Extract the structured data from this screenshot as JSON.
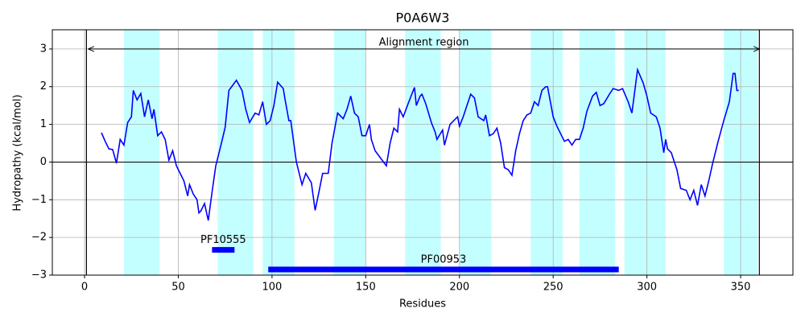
{
  "chart_data": {
    "type": "line",
    "title": "P0A6W3",
    "x_label": "Residues",
    "y_label": "Hydropathy (kcal/mol)",
    "xlim": [
      -17.2,
      377.9
    ],
    "ylim": [
      -3,
      3.51
    ],
    "xticks": [
      0,
      50,
      100,
      150,
      200,
      250,
      300,
      350
    ],
    "yticks": [
      {
        "value": -3,
        "label": "−3"
      },
      {
        "value": -2,
        "label": "−2"
      },
      {
        "value": -1,
        "label": "−1"
      },
      0,
      1,
      2,
      3
    ],
    "grid": true,
    "reference_line": 0,
    "highlight_color": "#c4ffff",
    "highlight_regions": [
      [
        21,
        40
      ],
      [
        71,
        90
      ],
      [
        95,
        112
      ],
      [
        133,
        150
      ],
      [
        171,
        190
      ],
      [
        200,
        217
      ],
      [
        238,
        255
      ],
      [
        264,
        283
      ],
      [
        288,
        310
      ],
      [
        341,
        359
      ]
    ],
    "boundary_lines": [
      1,
      360
    ],
    "alignment_region": {
      "label": "Alignment region",
      "start": 2,
      "end": 360,
      "y": 3
    },
    "domains": [
      {
        "label": "PF10555",
        "start": 68,
        "end": 80,
        "y": -2.33,
        "color": "#0000ff"
      },
      {
        "label": "PF00953",
        "start": 98,
        "end": 285,
        "y": -2.85,
        "color": "#0000ff"
      }
    ],
    "x": [
      9,
      11,
      13,
      15,
      17,
      19,
      21,
      23,
      25,
      26,
      28,
      30,
      32,
      34,
      36,
      37,
      39,
      41,
      43,
      45,
      47,
      49,
      51,
      53,
      55,
      56,
      58,
      60,
      61,
      62,
      64,
      66,
      68,
      70,
      73,
      75,
      77,
      81,
      84,
      86,
      88,
      91,
      93,
      95,
      97,
      99,
      101,
      103,
      106,
      107,
      109,
      110,
      113,
      116,
      118,
      121,
      123,
      125,
      127,
      130,
      132,
      135,
      138,
      140,
      142,
      144,
      146,
      148,
      150,
      152,
      153,
      155,
      158,
      161,
      163,
      165,
      167,
      168,
      170,
      173,
      176,
      177,
      179,
      180,
      182,
      185,
      187,
      188,
      191,
      192,
      195,
      199,
      200,
      202,
      204,
      206,
      208,
      210,
      213,
      214,
      216,
      218,
      220,
      222,
      224,
      226,
      228,
      230,
      232,
      234,
      236,
      238,
      240,
      242,
      244,
      246,
      247,
      250,
      252,
      254,
      256,
      258,
      260,
      262,
      264,
      266,
      268,
      271,
      273,
      275,
      277,
      280,
      282,
      285,
      287,
      290,
      292,
      295,
      298,
      300,
      302,
      305,
      307,
      309,
      310,
      311,
      313,
      316,
      318,
      321,
      323,
      325,
      327,
      329,
      331,
      333,
      335,
      338,
      341,
      344,
      346,
      347,
      348,
      349
    ],
    "series": [
      {
        "color": "#0000ff",
        "values": [
          0.78,
          0.55,
          0.35,
          0.33,
          -0.03,
          0.6,
          0.45,
          1.05,
          1.2,
          1.9,
          1.65,
          1.82,
          1.2,
          1.65,
          1.15,
          1.4,
          0.7,
          0.8,
          0.6,
          0.05,
          0.3,
          -0.1,
          -0.3,
          -0.5,
          -0.9,
          -0.6,
          -0.85,
          -1.0,
          -1.35,
          -1.3,
          -1.1,
          -1.55,
          -0.8,
          -0.1,
          0.5,
          0.92,
          1.9,
          2.17,
          1.9,
          1.4,
          1.05,
          1.3,
          1.25,
          1.6,
          1.0,
          1.1,
          1.5,
          2.12,
          1.95,
          1.65,
          1.1,
          1.1,
          0.0,
          -0.6,
          -0.3,
          -0.55,
          -1.28,
          -0.8,
          -0.3,
          -0.3,
          0.5,
          1.3,
          1.15,
          1.4,
          1.75,
          1.3,
          1.2,
          0.7,
          0.7,
          1.0,
          0.6,
          0.3,
          0.1,
          -0.1,
          0.5,
          0.9,
          0.8,
          1.4,
          1.2,
          1.6,
          1.98,
          1.5,
          1.75,
          1.8,
          1.55,
          1.05,
          0.8,
          0.6,
          0.85,
          0.45,
          1.0,
          1.2,
          0.95,
          1.2,
          1.5,
          1.8,
          1.7,
          1.2,
          1.1,
          1.25,
          0.7,
          0.75,
          0.9,
          0.5,
          -0.15,
          -0.2,
          -0.35,
          0.3,
          0.75,
          1.1,
          1.25,
          1.3,
          1.6,
          1.5,
          1.9,
          2.0,
          2.0,
          1.2,
          0.95,
          0.75,
          0.55,
          0.6,
          0.45,
          0.6,
          0.6,
          0.9,
          1.35,
          1.75,
          1.85,
          1.5,
          1.55,
          1.8,
          1.95,
          1.9,
          1.95,
          1.6,
          1.3,
          2.45,
          2.1,
          1.75,
          1.3,
          1.2,
          0.9,
          0.25,
          0.6,
          0.35,
          0.25,
          -0.2,
          -0.7,
          -0.75,
          -1.0,
          -0.75,
          -1.15,
          -0.6,
          -0.9,
          -0.5,
          -0.05,
          0.55,
          1.1,
          1.6,
          2.35,
          2.35,
          1.9,
          1.9
        ]
      }
    ]
  }
}
